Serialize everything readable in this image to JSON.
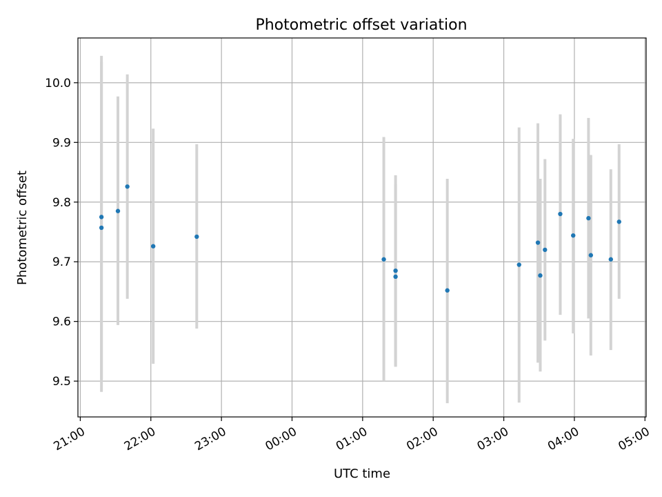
{
  "chart_data": {
    "type": "scatter",
    "title": "Photometric offset variation",
    "xlabel": "UTC time",
    "ylabel": "Photometric offset",
    "grid": true,
    "legend": "none",
    "xlim": [
      "20:58",
      "05:01"
    ],
    "ylim": [
      9.44,
      10.075
    ],
    "x_ticks": [
      "21:00",
      "22:00",
      "23:00",
      "00:00",
      "01:00",
      "02:00",
      "03:00",
      "04:00",
      "05:00"
    ],
    "y_ticks": [
      "9.5",
      "9.6",
      "9.7",
      "9.8",
      "9.9",
      "10.0"
    ],
    "colors": {
      "point": "#1f77b4",
      "errorbar": "#d3d3d3",
      "grid": "#b0b0b0"
    },
    "points": [
      {
        "x": "21:18",
        "y": 9.757,
        "ylow": 9.482,
        "yhigh": 10.045
      },
      {
        "x": "21:18",
        "y": 9.775,
        "ylow": 9.503,
        "yhigh": 10.035
      },
      {
        "x": "21:32",
        "y": 9.785,
        "ylow": 9.594,
        "yhigh": 9.977
      },
      {
        "x": "21:40",
        "y": 9.826,
        "ylow": 9.638,
        "yhigh": 10.014
      },
      {
        "x": "22:02",
        "y": 9.726,
        "ylow": 9.529,
        "yhigh": 9.923
      },
      {
        "x": "22:39",
        "y": 9.742,
        "ylow": 9.588,
        "yhigh": 9.897
      },
      {
        "x": "01:18",
        "y": 9.704,
        "ylow": 9.5,
        "yhigh": 9.909
      },
      {
        "x": "01:28",
        "y": 9.685,
        "ylow": 9.524,
        "yhigh": 9.845
      },
      {
        "x": "01:28",
        "y": 9.675,
        "ylow": 9.525,
        "yhigh": 9.83
      },
      {
        "x": "02:12",
        "y": 9.652,
        "ylow": 9.463,
        "yhigh": 9.839
      },
      {
        "x": "03:13",
        "y": 9.695,
        "ylow": 9.464,
        "yhigh": 9.925
      },
      {
        "x": "03:29",
        "y": 9.732,
        "ylow": 9.531,
        "yhigh": 9.932
      },
      {
        "x": "03:31",
        "y": 9.677,
        "ylow": 9.516,
        "yhigh": 9.839
      },
      {
        "x": "03:35",
        "y": 9.72,
        "ylow": 9.568,
        "yhigh": 9.872
      },
      {
        "x": "03:48",
        "y": 9.78,
        "ylow": 9.611,
        "yhigh": 9.947
      },
      {
        "x": "03:59",
        "y": 9.744,
        "ylow": 9.58,
        "yhigh": 9.906
      },
      {
        "x": "04:12",
        "y": 9.773,
        "ylow": 9.605,
        "yhigh": 9.941
      },
      {
        "x": "04:14",
        "y": 9.711,
        "ylow": 9.543,
        "yhigh": 9.879
      },
      {
        "x": "04:31",
        "y": 9.704,
        "ylow": 9.552,
        "yhigh": 9.855
      },
      {
        "x": "04:38",
        "y": 9.767,
        "ylow": 9.638,
        "yhigh": 9.897
      }
    ]
  }
}
